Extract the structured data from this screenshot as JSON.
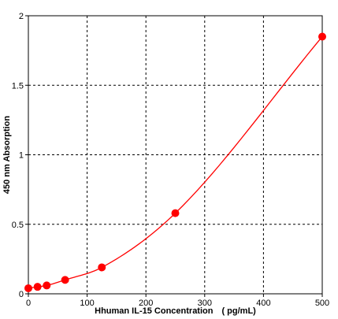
{
  "chart_data": {
    "type": "scatter",
    "title": "",
    "xlabel": "Hhuman IL-15 Concentration　( pg/mL)",
    "ylabel": "450 nm Absorption",
    "xlim": [
      0,
      500
    ],
    "ylim": [
      0,
      2
    ],
    "x_ticks": [
      0,
      100,
      200,
      300,
      400,
      500
    ],
    "y_ticks": [
      0,
      0.5,
      1,
      1.5,
      2
    ],
    "x_tick_labels": [
      "0",
      "100",
      "200",
      "300",
      "400",
      "500"
    ],
    "y_tick_labels": [
      "0",
      "0.5",
      "1",
      "1.5",
      "2"
    ],
    "grid": true,
    "grid_style": "dashed",
    "legend": "none",
    "series": [
      {
        "points": [
          {
            "x": 0,
            "y": 0.04
          },
          {
            "x": 15.6,
            "y": 0.05
          },
          {
            "x": 31.2,
            "y": 0.06
          },
          {
            "x": 62.5,
            "y": 0.1
          },
          {
            "x": 125,
            "y": 0.19
          },
          {
            "x": 250,
            "y": 0.58
          },
          {
            "x": 500,
            "y": 1.85
          }
        ],
        "fit_curve": true,
        "color": "#ff0000"
      }
    ],
    "colors": {
      "series": "#ff0000",
      "axis": "#000000",
      "grid": "#000000",
      "background": "#ffffff"
    }
  }
}
